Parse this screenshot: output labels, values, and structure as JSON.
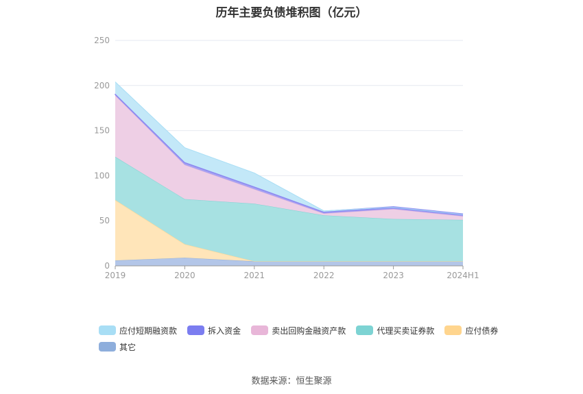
{
  "title": "历年主要负债堆积图（亿元）",
  "source": "数据来源：恒生聚源",
  "chart_data": {
    "type": "area",
    "stacked": true,
    "categories": [
      "2019",
      "2020",
      "2021",
      "2022",
      "2023",
      "2024H1"
    ],
    "ylim": [
      0,
      250
    ],
    "yticks": [
      0,
      50,
      100,
      150,
      200,
      250
    ],
    "grid": true,
    "legend_position": "bottom",
    "series": [
      {
        "name": "其它",
        "color": "#8eaedc",
        "fill": "#b3c6e8",
        "values": [
          6,
          9,
          5,
          5,
          5,
          5
        ]
      },
      {
        "name": "应付债券",
        "color": "#ffd58e",
        "fill": "#ffe5b9",
        "values": [
          67,
          15,
          0,
          0,
          0,
          0
        ]
      },
      {
        "name": "代理买卖证券款",
        "color": "#7dd3d3",
        "fill": "#a7e1e2",
        "values": [
          48,
          50,
          64,
          51,
          47,
          46
        ]
      },
      {
        "name": "卖出回购金融资产款",
        "color": "#e8b6d8",
        "fill": "#eecfe5",
        "values": [
          68,
          38,
          16,
          2,
          11,
          4
        ]
      },
      {
        "name": "拆入资金",
        "color": "#8c88f0",
        "fill": "#a7a3f2",
        "values": [
          2,
          3,
          3,
          2,
          2,
          2
        ]
      },
      {
        "name": "应付短期融资款",
        "color": "#a8def5",
        "fill": "#c3e8f8",
        "values": [
          13,
          16,
          15,
          1,
          0,
          0
        ]
      }
    ]
  },
  "legend_rows": [
    [
      "应付短期融资款",
      "拆入资金",
      "卖出回购金融资产款",
      "代理买卖证券款",
      "应付债券"
    ],
    [
      "其它"
    ]
  ]
}
